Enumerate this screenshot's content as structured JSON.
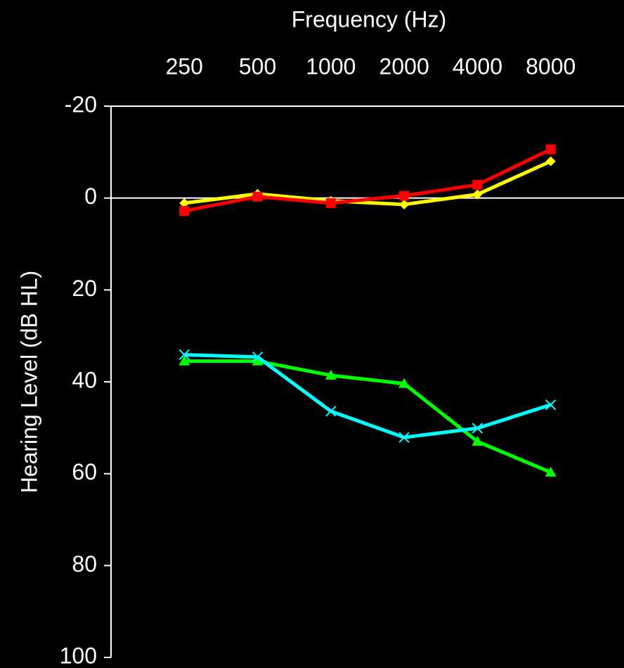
{
  "chart_data": {
    "type": "line",
    "title": "Frequency (Hz)",
    "y_label": "Hearing Level (dB HL)",
    "categories": [
      "250",
      "500",
      "1000",
      "2000",
      "4000",
      "8000"
    ],
    "series": [
      {
        "color": "#ffff00",
        "marker": "diamond",
        "values": [
          1.1,
          -0.9,
          0.6,
          1.4,
          -0.8,
          -8.0
        ]
      },
      {
        "color": "#ff0000",
        "marker": "square",
        "values": [
          2.8,
          -0.3,
          1.1,
          -0.5,
          -2.9,
          -10.6
        ]
      },
      {
        "color": "#00ff00",
        "marker": "triangle",
        "values": [
          35.5,
          35.5,
          38.6,
          40.4,
          53.0,
          59.7
        ]
      },
      {
        "color": "#00ffff",
        "marker": "x",
        "values": [
          34.1,
          34.6,
          46.4,
          52.1,
          50.1,
          45.0
        ]
      }
    ],
    "ylim": [
      -20,
      100
    ],
    "yticks": [
      -20,
      0,
      20,
      40,
      60,
      80,
      100
    ],
    "y_inverted": true,
    "zero_line": true
  }
}
